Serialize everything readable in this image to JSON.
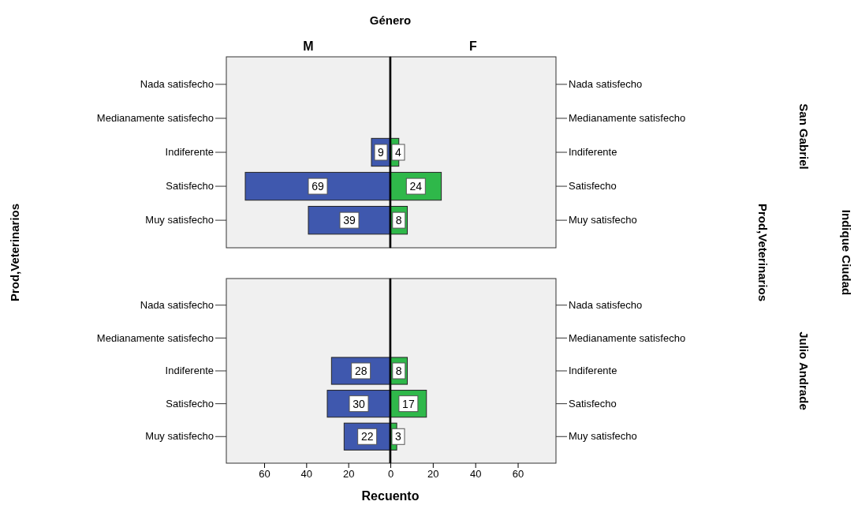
{
  "chart_data": [
    {
      "type": "bar",
      "orientation": "horizontal",
      "title": "M",
      "ylabel": "Prod,Veterinarios",
      "annotations": [
        "Género"
      ],
      "categories": [
        "Nada satisfecho",
        "Medianamente satisfecho",
        "Indiferente",
        "Satisfecho",
        "Muy satisfecho"
      ],
      "values": [
        null,
        null,
        9,
        69,
        39
      ],
      "color": "#3f58ae",
      "data_labels": true,
      "xlim": [
        78,
        0
      ],
      "tick_labels": "y"
    },
    {
      "type": "bar",
      "orientation": "horizontal",
      "title": "F",
      "ylabel": "Prod,Veterinarios",
      "annotations": [
        "San Gabriel",
        "Indique Ciudad"
      ],
      "categories": [
        "Nada satisfecho",
        "Medianamente satisfecho",
        "Indiferente",
        "Satisfecho",
        "Muy satisfecho"
      ],
      "values": [
        null,
        null,
        4,
        24,
        8
      ],
      "color": "#2fb84a",
      "data_labels": true,
      "xlim": [
        0,
        78
      ],
      "tick_labels": "y"
    },
    {
      "type": "bar",
      "orientation": "horizontal",
      "xlabel": "Recuento",
      "categories": [
        "Nada satisfecho",
        "Medianamente satisfecho",
        "Indiferente",
        "Satisfecho",
        "Muy satisfecho"
      ],
      "values": [
        null,
        null,
        28,
        30,
        22
      ],
      "color": "#3f58ae",
      "data_labels": true,
      "xlim": [
        78,
        0
      ],
      "xticks": [
        60,
        40,
        20,
        0
      ]
    },
    {
      "type": "bar",
      "orientation": "horizontal",
      "annotations": [
        "Julio Andrade"
      ],
      "categories": [
        "Nada satisfecho",
        "Medianamente satisfecho",
        "Indiferente",
        "Satisfecho",
        "Muy satisfecho"
      ],
      "values": [
        null,
        null,
        8,
        17,
        3
      ],
      "color": "#2fb84a",
      "data_labels": true,
      "xlim": [
        0,
        78
      ],
      "xticks": [
        20,
        40,
        60
      ]
    }
  ]
}
